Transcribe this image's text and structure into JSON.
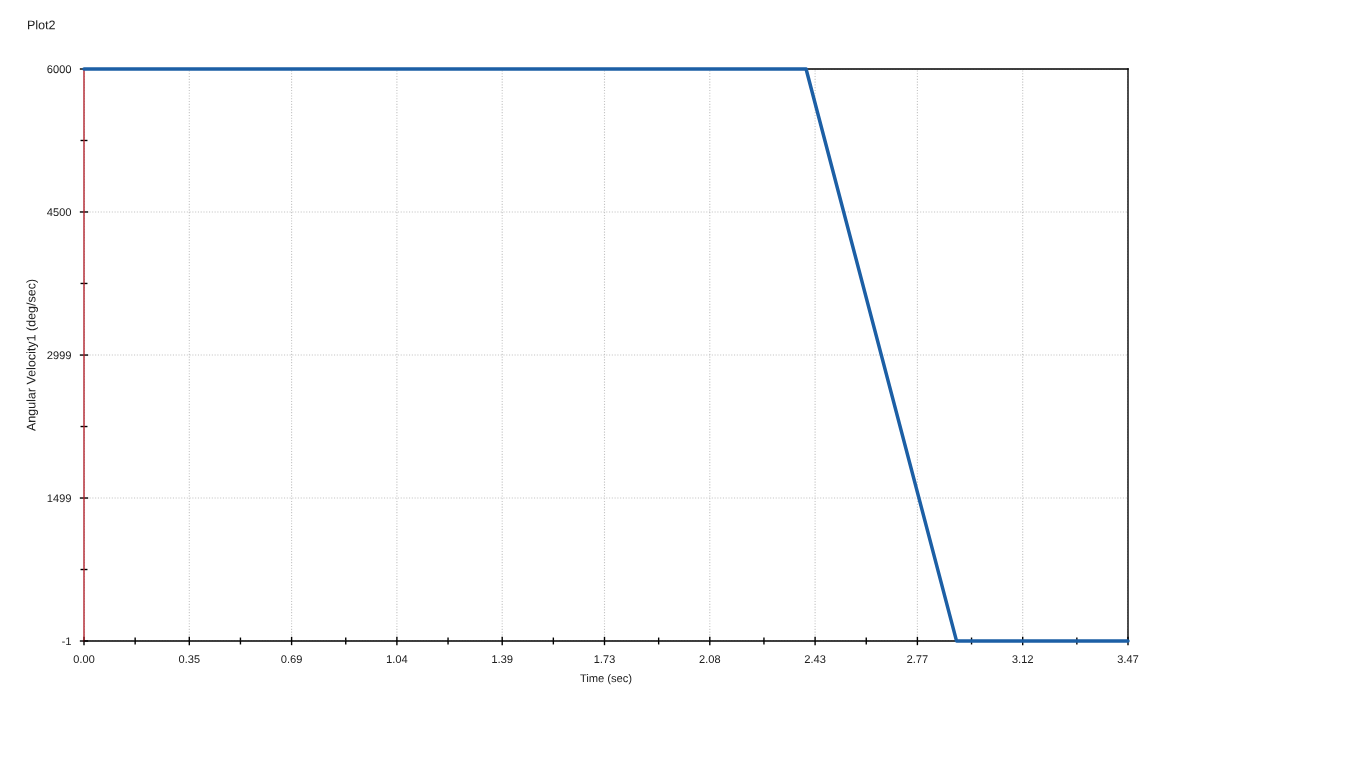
{
  "chart_data": {
    "type": "line",
    "title": "Plot2",
    "xlabel": "Time (sec)",
    "ylabel": "Angular Velocity1 (deg/sec)",
    "series": [
      {
        "color": "#1c5fa5",
        "x": [
          0,
          2.4,
          2.9,
          3.47
        ],
        "values": [
          6000,
          6000,
          0,
          0
        ]
      }
    ],
    "xlim": [
      0,
      3.47
    ],
    "ylim": [
      -1,
      6000
    ],
    "xticks": [
      {
        "value": 0,
        "label": "0.00"
      },
      {
        "value": 0.17,
        "label": null
      },
      0.35,
      {
        "value": 0.52,
        "label": null
      },
      0.69,
      {
        "value": 0.87,
        "label": null
      },
      1.04,
      {
        "value": 1.21,
        "label": null
      },
      1.39,
      {
        "value": 1.56,
        "label": null
      },
      1.73,
      {
        "value": 1.91,
        "label": null
      },
      2.08,
      {
        "value": 2.26,
        "label": null
      },
      2.43,
      {
        "value": 2.6,
        "label": null
      },
      2.77,
      {
        "value": 2.95,
        "label": null
      },
      3.12,
      {
        "value": 3.3,
        "label": null
      },
      3.47
    ],
    "yticks": [
      -1,
      {
        "value": 749,
        "label": null
      },
      1499,
      {
        "value": 2249,
        "label": null
      },
      2999,
      {
        "value": 3750,
        "label": null
      },
      4500,
      {
        "value": 5250,
        "label": null
      },
      6000
    ],
    "grid": true,
    "marker": "none",
    "line_style": "solid"
  }
}
